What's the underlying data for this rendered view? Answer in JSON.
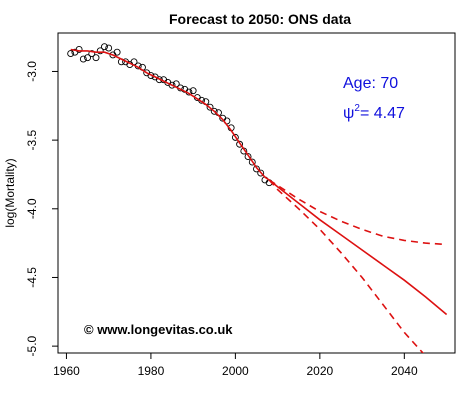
{
  "chart_data": {
    "type": "line",
    "title": "Forecast to 2050: ONS data",
    "xlabel": "",
    "ylabel": "log(Mortality)",
    "xlim": [
      1958,
      2052
    ],
    "ylim": [
      -5.05,
      -2.72
    ],
    "x_ticks": [
      1960,
      1980,
      2000,
      2020,
      2040
    ],
    "y_ticks": [
      -3.0,
      -3.5,
      -4.0,
      -4.5,
      -5.0
    ],
    "y_tick_labels": [
      "-3.0",
      "-3.5",
      "-4.0",
      "-4.5",
      "-5.0"
    ],
    "grid": false,
    "annotations": {
      "age": "Age: 70",
      "psi_symbol": "ψ",
      "psi_exp": "2",
      "psi_value": "= 4.47",
      "copyright": "© www.longevitas.co.uk",
      "color": "#1010dd"
    },
    "series": [
      {
        "kind": "points",
        "color": "#000000",
        "x": [
          1961,
          1962,
          1963,
          1964,
          1965,
          1966,
          1967,
          1968,
          1969,
          1970,
          1971,
          1972,
          1973,
          1974,
          1975,
          1976,
          1977,
          1978,
          1979,
          1980,
          1981,
          1982,
          1983,
          1984,
          1985,
          1986,
          1987,
          1988,
          1989,
          1990,
          1991,
          1992,
          1993,
          1994,
          1995,
          1996,
          1997,
          1998,
          1999,
          2000,
          2001,
          2002,
          2003,
          2004,
          2005,
          2006,
          2007,
          2008
        ],
        "y": [
          -2.87,
          -2.86,
          -2.84,
          -2.91,
          -2.9,
          -2.87,
          -2.9,
          -2.85,
          -2.82,
          -2.83,
          -2.88,
          -2.86,
          -2.93,
          -2.93,
          -2.95,
          -2.93,
          -2.96,
          -2.97,
          -3.01,
          -3.03,
          -3.04,
          -3.06,
          -3.06,
          -3.08,
          -3.1,
          -3.09,
          -3.12,
          -3.13,
          -3.15,
          -3.14,
          -3.19,
          -3.21,
          -3.22,
          -3.26,
          -3.29,
          -3.3,
          -3.34,
          -3.36,
          -3.41,
          -3.48,
          -3.53,
          -3.58,
          -3.62,
          -3.66,
          -3.71,
          -3.74,
          -3.79,
          -3.81
        ]
      },
      {
        "kind": "fitted",
        "color": "#dd1111",
        "dash": false,
        "x": [
          1961,
          1963,
          1965,
          1967,
          1969,
          1971,
          1973,
          1975,
          1977,
          1979,
          1981,
          1983,
          1985,
          1987,
          1989,
          1991,
          1993,
          1995,
          1997,
          1999,
          2001,
          2003,
          2005,
          2007,
          2008
        ],
        "y": [
          -2.84,
          -2.85,
          -2.85,
          -2.86,
          -2.86,
          -2.88,
          -2.91,
          -2.94,
          -2.97,
          -3.01,
          -3.04,
          -3.07,
          -3.1,
          -3.13,
          -3.16,
          -3.2,
          -3.24,
          -3.29,
          -3.35,
          -3.43,
          -3.52,
          -3.61,
          -3.7,
          -3.77,
          -3.79
        ]
      },
      {
        "kind": "forecast-central",
        "color": "#dd1111",
        "dash": false,
        "x": [
          2008,
          2010,
          2015,
          2020,
          2025,
          2030,
          2035,
          2040,
          2045,
          2050
        ],
        "y": [
          -3.79,
          -3.84,
          -3.96,
          -4.08,
          -4.19,
          -4.3,
          -4.41,
          -4.52,
          -4.64,
          -4.77
        ]
      },
      {
        "kind": "forecast-upper",
        "color": "#dd1111",
        "dash": true,
        "x": [
          2008,
          2010,
          2015,
          2020,
          2025,
          2030,
          2035,
          2040,
          2045,
          2050
        ],
        "y": [
          -3.79,
          -3.83,
          -3.93,
          -4.02,
          -4.09,
          -4.15,
          -4.2,
          -4.23,
          -4.25,
          -4.26
        ]
      },
      {
        "kind": "forecast-lower",
        "color": "#dd1111",
        "dash": true,
        "x": [
          2008,
          2010,
          2015,
          2020,
          2025,
          2030,
          2035,
          2040,
          2045
        ],
        "y": [
          -3.79,
          -3.86,
          -4.0,
          -4.15,
          -4.32,
          -4.5,
          -4.7,
          -4.9,
          -5.07
        ]
      }
    ]
  }
}
